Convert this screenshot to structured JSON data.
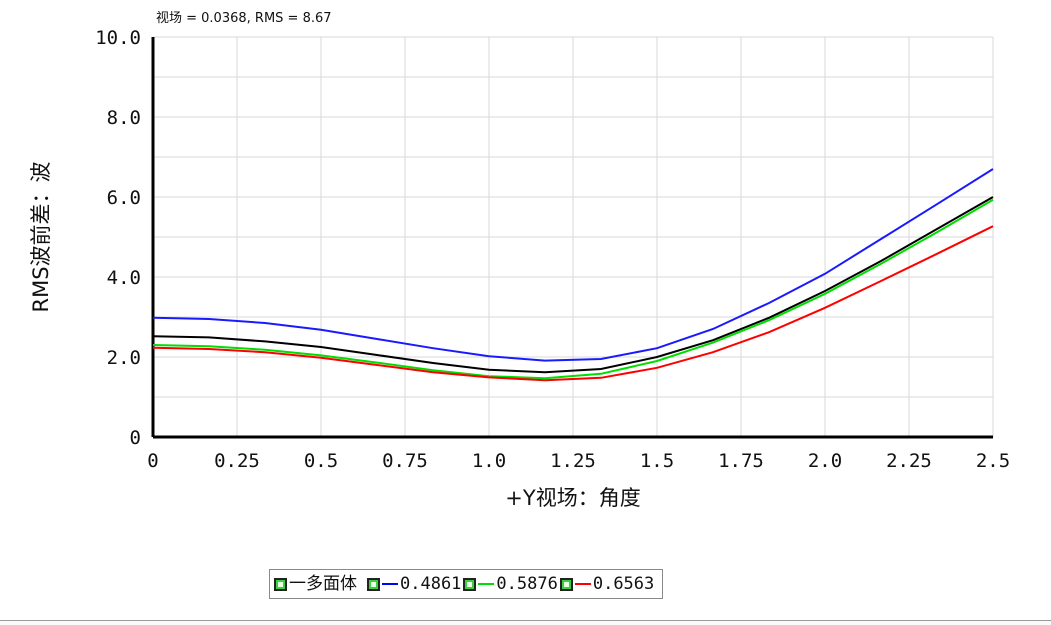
{
  "header": {
    "text": "视场 = 0.0368, RMS = 8.67"
  },
  "legend": {
    "items": [
      {
        "label": "一多面体",
        "color": "#000000",
        "swatch": false
      },
      {
        "label": "0.4861",
        "color": "#0000ff",
        "swatch": true
      },
      {
        "label": "0.5876",
        "color": "#00dd00",
        "swatch": true
      },
      {
        "label": "0.6563",
        "color": "#ff0000",
        "swatch": true
      }
    ]
  },
  "chart_data": {
    "type": "line",
    "title": "",
    "xlabel": "+Y视场：角度",
    "ylabel": "RMS波前差：波",
    "xlim": [
      0,
      2.5
    ],
    "ylim": [
      0,
      10
    ],
    "xticks": [
      "0",
      "0.25",
      "0.5",
      "0.75",
      "1.0",
      "1.25",
      "1.5",
      "1.75",
      "2.0",
      "2.25",
      "2.5"
    ],
    "yticks": [
      "0",
      "2.0",
      "4.0",
      "6.0",
      "8.0",
      "10.0"
    ],
    "x": [
      0,
      0.1667,
      0.3333,
      0.5,
      0.6667,
      0.8333,
      1.0,
      1.1667,
      1.3333,
      1.5,
      1.6667,
      1.8333,
      2.0,
      2.1667,
      2.3333,
      2.5
    ],
    "series": [
      {
        "name": "多面体",
        "color": "#000000",
        "values": [
          2.52,
          2.49,
          2.39,
          2.25,
          2.05,
          1.85,
          1.68,
          1.62,
          1.7,
          2.0,
          2.42,
          2.98,
          3.65,
          4.4,
          5.2,
          6.0
        ]
      },
      {
        "name": "0.4861",
        "color": "#1a1aff",
        "values": [
          2.98,
          2.95,
          2.85,
          2.68,
          2.45,
          2.22,
          2.02,
          1.91,
          1.95,
          2.22,
          2.7,
          3.35,
          4.08,
          4.95,
          5.82,
          6.7
        ]
      },
      {
        "name": "0.5876",
        "color": "#00dd00",
        "values": [
          2.3,
          2.27,
          2.18,
          2.04,
          1.86,
          1.67,
          1.52,
          1.47,
          1.58,
          1.9,
          2.36,
          2.92,
          3.58,
          4.33,
          5.12,
          5.93
        ]
      },
      {
        "name": "0.6563",
        "color": "#ff0000",
        "values": [
          2.23,
          2.2,
          2.12,
          1.98,
          1.8,
          1.62,
          1.49,
          1.42,
          1.48,
          1.73,
          2.12,
          2.62,
          3.23,
          3.9,
          4.58,
          5.27
        ]
      }
    ],
    "grid": true,
    "legend_position": "bottom"
  }
}
